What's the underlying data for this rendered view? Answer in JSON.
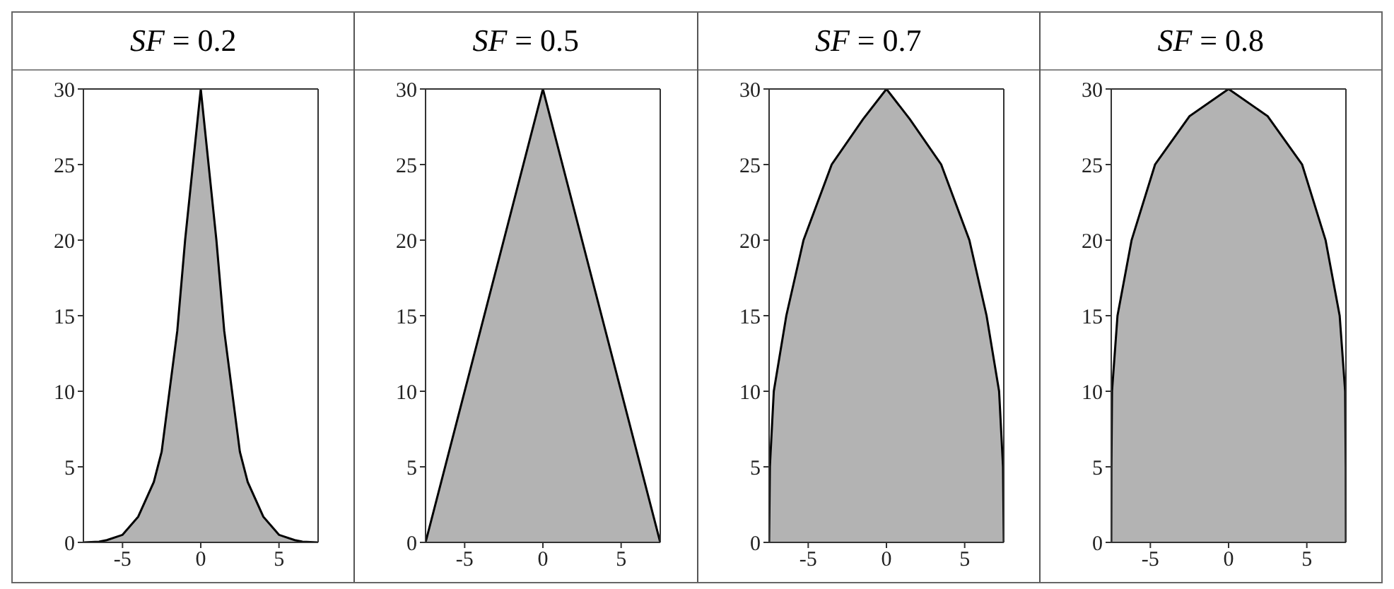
{
  "chart_data": [
    {
      "type": "area",
      "title": "SF = 0.2",
      "x": [
        -7.5,
        -6.5,
        -6,
        -5,
        -4,
        -3,
        -2.5,
        -2,
        -1.5,
        -1,
        -0.5,
        0,
        0.5,
        1,
        1.5,
        2,
        2.5,
        3,
        4,
        5,
        6,
        6.5,
        7.5
      ],
      "values": [
        0,
        0.05,
        0.15,
        0.5,
        1.7,
        4,
        6,
        10,
        14,
        20,
        25,
        30,
        25,
        20,
        14,
        10,
        6,
        4,
        1.7,
        0.5,
        0.15,
        0.05,
        0
      ],
      "color": "#b3b3b3",
      "xlim": [
        -7.5,
        7.5
      ],
      "ylim": [
        0,
        30
      ],
      "xticks": [
        -5,
        0,
        5
      ],
      "yticks": [
        0,
        5,
        10,
        15,
        20,
        25,
        30
      ]
    },
    {
      "type": "area",
      "title": "SF = 0.5",
      "x": [
        -7.5,
        0,
        7.5
      ],
      "values": [
        0,
        30,
        0
      ],
      "color": "#b3b3b3",
      "xlim": [
        -7.5,
        7.5
      ],
      "ylim": [
        0,
        30
      ],
      "xticks": [
        -5,
        0,
        5
      ],
      "yticks": [
        0,
        5,
        10,
        15,
        20,
        25,
        30
      ]
    },
    {
      "type": "area",
      "title": "SF = 0.7",
      "x": [
        -7.5,
        -7.45,
        -7.2,
        -6.4,
        -5.3,
        -3.5,
        -1.5,
        0,
        1.5,
        3.5,
        5.3,
        6.4,
        7.2,
        7.45,
        7.5
      ],
      "values": [
        0,
        5,
        10,
        15,
        20,
        25,
        28,
        30,
        28,
        25,
        20,
        15,
        10,
        5,
        0
      ],
      "color": "#b3b3b3",
      "xlim": [
        -7.5,
        7.5
      ],
      "ylim": [
        0,
        30
      ],
      "xticks": [
        -5,
        0,
        5
      ],
      "yticks": [
        0,
        5,
        10,
        15,
        20,
        25,
        30
      ]
    },
    {
      "type": "area",
      "title": "SF = 0.8",
      "x": [
        -7.5,
        -7.49,
        -7.45,
        -7.1,
        -6.2,
        -4.7,
        -2.5,
        0,
        2.5,
        4.7,
        6.2,
        7.1,
        7.45,
        7.49,
        7.5
      ],
      "values": [
        0,
        5,
        10,
        15,
        20,
        25,
        28.2,
        30,
        28.2,
        25,
        20,
        15,
        10,
        5,
        0
      ],
      "color": "#b3b3b3",
      "xlim": [
        -7.5,
        7.5
      ],
      "ylim": [
        0,
        30
      ],
      "xticks": [
        -5,
        0,
        5
      ],
      "yticks": [
        0,
        5,
        10,
        15,
        20,
        25,
        30
      ]
    }
  ]
}
